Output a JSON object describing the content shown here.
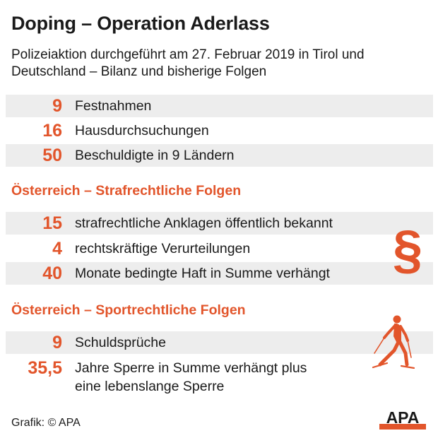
{
  "header": {
    "title": "Doping – Operation Aderlass",
    "subtitle": "Polizeiaktion durchgeführt am 27. Februar 2019 in Tirol und Deutschland – Bilanz und bisherige Folgen"
  },
  "overview": [
    {
      "value": "9",
      "label": "Festnahmen"
    },
    {
      "value": "16",
      "label": "Hausdurchsuchungen"
    },
    {
      "value": "50",
      "label": "Beschuldigte in 9 Ländern"
    }
  ],
  "criminal": {
    "heading": "Österreich – Strafrechtliche Folgen",
    "symbol": "§",
    "items": [
      {
        "value": "15",
        "label": "strafrechtliche Anklagen öffentlich bekannt"
      },
      {
        "value": "4",
        "label": "rechtskräftige Verurteilungen"
      },
      {
        "value": "40",
        "label": "Monate bedingte Haft in Summe verhängt"
      }
    ]
  },
  "sport": {
    "heading": "Österreich – Sportrechtliche Folgen",
    "items": [
      {
        "value": "9",
        "label": "Schuldsprüche"
      },
      {
        "value": "35,5",
        "label_line1": "Jahre Sperre in Summe verhängt plus",
        "label_line2": "eine lebenslange Sperre"
      }
    ]
  },
  "footer": {
    "credit": "Grafik: © APA",
    "logo_text": "APA"
  },
  "colors": {
    "accent": "#e2552b",
    "text": "#1a1a1a",
    "row_shade": "#ededed"
  },
  "icons": {
    "section_symbol": "paragraph-icon",
    "sport": "skier-icon",
    "logo": "apa-logo"
  }
}
